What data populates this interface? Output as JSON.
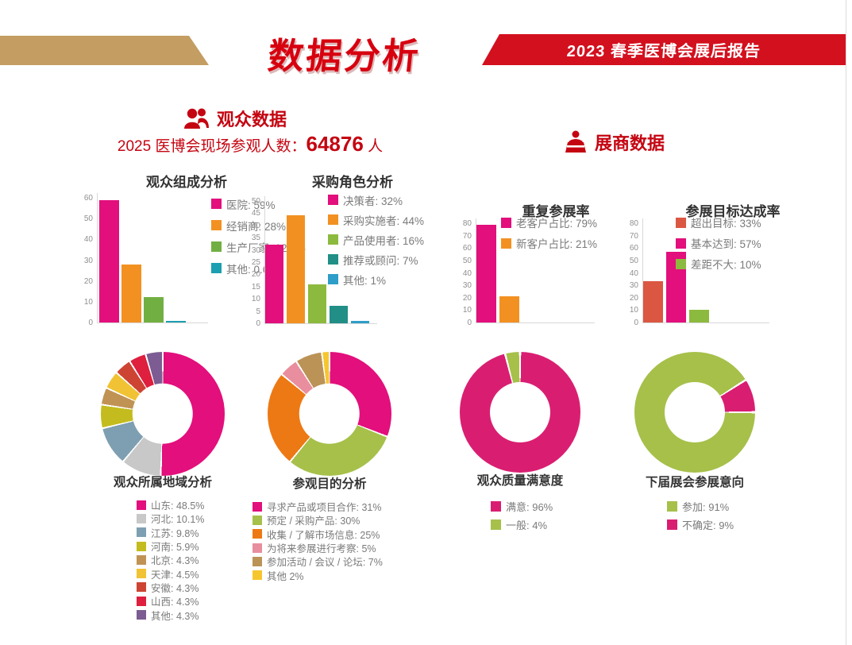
{
  "theme": {
    "red": "#C40511",
    "title_red": "#D7000F",
    "banner_red": "#D3101E",
    "tan": "#C49D62",
    "text_dark": "#333333",
    "legend_gray": "#7A7A7A",
    "axis_gray": "#8F8F8F"
  },
  "header": {
    "title": "数据分析",
    "banner": "2023 春季医博会展后报告"
  },
  "sections": {
    "audience": {
      "label": "观众数据",
      "stat_prefix": "2025 医博会现场参观人数：",
      "stat_value": "64876",
      "stat_suffix": " 人"
    },
    "exhibitor": {
      "label": "展商数据"
    }
  },
  "chart_data": [
    {
      "id": "composition",
      "type": "bar",
      "title": "观众组成分析",
      "ylim": [
        0,
        60
      ],
      "ytick_step": 10,
      "unit": "%",
      "grid": false,
      "legend_position": "right-of-bars",
      "items": [
        {
          "label": "医院",
          "value": 59,
          "legend": "医院: 59%",
          "color": "#E20F7C"
        },
        {
          "label": "经销商",
          "value": 28,
          "legend": "经销商: 28%",
          "color": "#F29122"
        },
        {
          "label": "生产厂家",
          "value": 12.4,
          "legend": "生产厂家: 12.4%",
          "color": "#72AF43"
        },
        {
          "label": "其他",
          "value": 0.6,
          "legend": "其他: 0.6%",
          "color": "#1C9FB0"
        }
      ]
    },
    {
      "id": "purchase",
      "type": "bar",
      "title": "采购角色分析",
      "ylim": [
        0,
        50
      ],
      "ytick_step": 5,
      "unit": "%",
      "grid": false,
      "legend_position": "right-of-bars",
      "items": [
        {
          "label": "决策者",
          "value": 32,
          "legend": "决策者: 32%",
          "color": "#E20F7C"
        },
        {
          "label": "采购实施者",
          "value": 44,
          "legend": "采购实施者: 44%",
          "color": "#F29122"
        },
        {
          "label": "产品使用者",
          "value": 16,
          "legend": "产品使用者: 16%",
          "color": "#8CBA3E"
        },
        {
          "label": "推荐或顾问",
          "value": 7,
          "legend": "推荐或顾问: 7%",
          "color": "#218F85"
        },
        {
          "label": "其他",
          "value": 1,
          "legend": "其他: 1%",
          "color": "#2E9EC8"
        }
      ]
    },
    {
      "id": "repeat",
      "type": "bar",
      "title": "重复参展率",
      "ylim": [
        0,
        80
      ],
      "ytick_step": 10,
      "unit": "%",
      "grid": false,
      "legend_position": "right-of-bars",
      "items": [
        {
          "label": "老客户占比",
          "value": 79,
          "legend": "老客户占比: 79%",
          "color": "#E20F7C"
        },
        {
          "label": "新客户占比",
          "value": 21,
          "legend": "新客户占比: 21%",
          "color": "#F29122"
        }
      ]
    },
    {
      "id": "goal",
      "type": "bar",
      "title": "参展目标达成率",
      "ylim": [
        0,
        80
      ],
      "ytick_step": 10,
      "unit": "%",
      "grid": false,
      "legend_position": "right-of-bars",
      "items": [
        {
          "label": "超出目标",
          "value": 33,
          "legend": "超出目标: 33%",
          "color": "#DB5742"
        },
        {
          "label": "基本达到",
          "value": 57,
          "legend": "基本达到: 57%",
          "color": "#E20F7C"
        },
        {
          "label": "差距不大",
          "value": 10,
          "legend": "差距不大: 10%",
          "color": "#8CBA3E"
        }
      ]
    },
    {
      "id": "region",
      "type": "pie",
      "title": "观众所属地域分析",
      "unit": "%",
      "legend_position": "below",
      "items": [
        {
          "label": "山东",
          "value": 48.5,
          "legend": "山东: 48.5%",
          "color": "#E20F7C"
        },
        {
          "label": "河北",
          "value": 10.1,
          "legend": "河北: 10.1%",
          "color": "#C8C8C8"
        },
        {
          "label": "江苏",
          "value": 9.8,
          "legend": "江苏: 9.8%",
          "color": "#7E9FB1"
        },
        {
          "label": "河南",
          "value": 5.9,
          "legend": "河南: 5.9%",
          "color": "#C4BC1E"
        },
        {
          "label": "北京",
          "value": 4.3,
          "legend": "北京: 4.3%",
          "color": "#C09355"
        },
        {
          "label": "天津",
          "value": 4.5,
          "legend": "天津: 4.5%",
          "color": "#F1C233"
        },
        {
          "label": "安徽",
          "value": 4.3,
          "legend": "安徽: 4.3%",
          "color": "#CE4433"
        },
        {
          "label": "山西",
          "value": 4.3,
          "legend": "山西: 4.3%",
          "color": "#DE1F3E"
        },
        {
          "label": "其他",
          "value": 4.3,
          "legend": "其他: 4.3%",
          "color": "#7C5C92"
        }
      ]
    },
    {
      "id": "purpose",
      "type": "pie",
      "title": "参观目的分析",
      "unit": "%",
      "legend_position": "below",
      "items": [
        {
          "label": "寻求产品或项目合作",
          "value": 31,
          "legend": "寻求产品或项目合作: 31%",
          "color": "#E20F7C"
        },
        {
          "label": "预定 / 采购产品",
          "value": 30,
          "legend": "预定 / 采购产品: 30%",
          "color": "#A6C04A"
        },
        {
          "label": "收集 / 了解市场信息",
          "value": 25,
          "legend": "收集 / 了解市场信息: 25%",
          "color": "#ED7914"
        },
        {
          "label": "为将来参展进行考察",
          "value": 5,
          "legend": "为将来参展进行考察: 5%",
          "color": "#E98E9E"
        },
        {
          "label": "参加活动 / 会议 / 论坛",
          "value": 7,
          "legend": "参加活动 / 会议 / 论坛: 7%",
          "color": "#BB9357"
        },
        {
          "label": "其他",
          "value": 2,
          "legend": "其他 2%",
          "color": "#F6C62F"
        }
      ]
    },
    {
      "id": "satisfaction",
      "type": "pie",
      "title": "观众质量满意度",
      "unit": "%",
      "legend_position": "below",
      "items": [
        {
          "label": "满意",
          "value": 96,
          "legend": "满意: 96%",
          "color": "#D91E72"
        },
        {
          "label": "一般",
          "value": 4,
          "legend": "一般: 4%",
          "color": "#A6C04A"
        }
      ]
    },
    {
      "id": "intention",
      "type": "pie",
      "title": "下届展会参展意向",
      "unit": "%",
      "legend_position": "below",
      "items": [
        {
          "label": "参加",
          "value": 91,
          "legend": "参加: 91%",
          "color": "#A6C04A"
        },
        {
          "label": "不确定",
          "value": 9,
          "legend": "不确定: 9%",
          "color": "#D91E72"
        }
      ]
    }
  ]
}
